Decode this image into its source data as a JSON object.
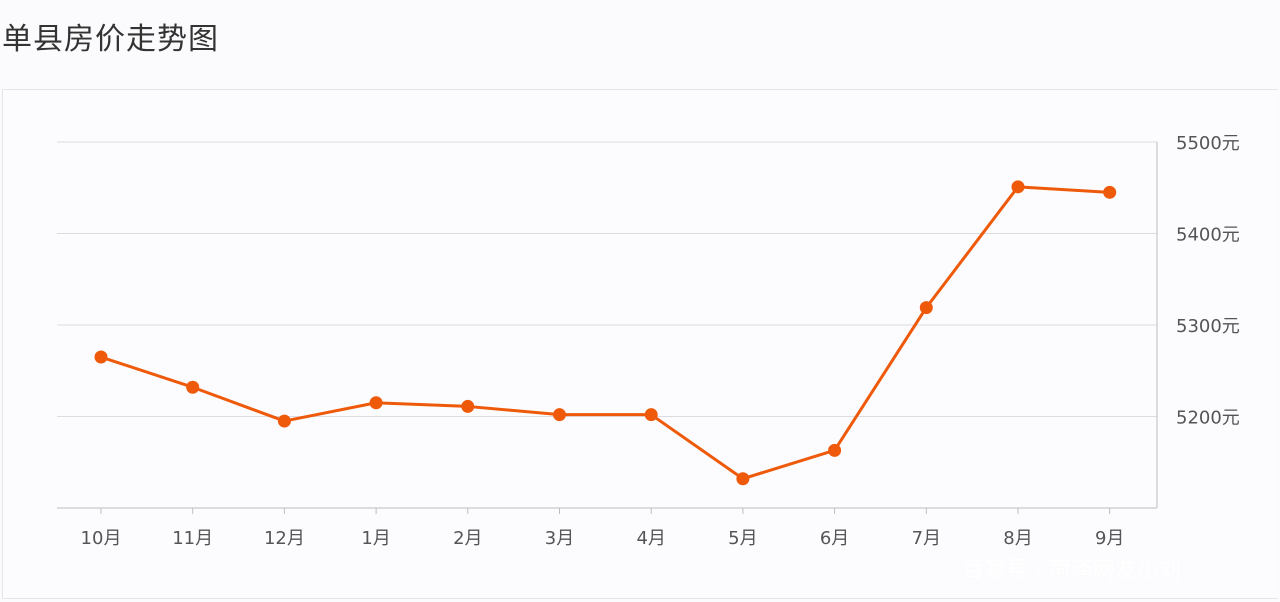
{
  "title": "单县房价走势图",
  "watermark": "百家号 · 菏泽网友小刘",
  "colors": {
    "line": "#ee5a0a",
    "grid": "#dcdce0",
    "axis_text": "#555555",
    "title": "#333333"
  },
  "chart_data": {
    "type": "line",
    "title": "单县房价走势图",
    "xlabel": "",
    "ylabel": "",
    "categories": [
      "10月",
      "11月",
      "12月",
      "1月",
      "2月",
      "3月",
      "4月",
      "5月",
      "6月",
      "7月",
      "8月",
      "9月"
    ],
    "series": [
      {
        "values": [
          5265,
          5232,
          5195,
          5215,
          5211,
          5202,
          5202,
          5132,
          5163,
          5319,
          5451,
          5445
        ]
      }
    ],
    "ylim": [
      5100,
      5500
    ],
    "y_ticks": [
      5200,
      5300,
      5400,
      5500
    ],
    "y_tick_labels": [
      "5200元",
      "5300元",
      "5400元",
      "5500元"
    ],
    "y_axis_position": "right",
    "grid": true,
    "markers": true
  }
}
